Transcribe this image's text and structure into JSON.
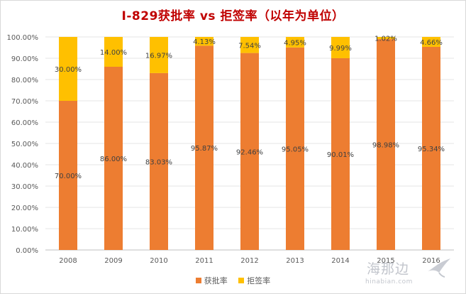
{
  "chart_data": {
    "type": "bar",
    "stacked": true,
    "title": "I-829获批率 vs 拒签率（以年为单位）",
    "xlabel": "",
    "ylabel": "",
    "ylim": [
      0,
      100
    ],
    "y_ticks": [
      "0.00%",
      "10.00%",
      "20.00%",
      "30.00%",
      "40.00%",
      "50.00%",
      "60.00%",
      "70.00%",
      "80.00%",
      "90.00%",
      "100.00%"
    ],
    "categories": [
      "2008",
      "2009",
      "2010",
      "2011",
      "2012",
      "2013",
      "2014",
      "2015",
      "2016"
    ],
    "series": [
      {
        "name": "获批率",
        "color": "#ed7d31",
        "values": [
          70.0,
          86.0,
          83.03,
          95.87,
          92.46,
          95.05,
          90.01,
          98.98,
          95.34
        ],
        "labels": [
          "70.00%",
          "86.00%",
          "83.03%",
          "95.87%",
          "92.46%",
          "95.05%",
          "90.01%",
          "98.98%",
          "95.34%"
        ]
      },
      {
        "name": "拒签率",
        "color": "#ffc000",
        "values": [
          30.0,
          14.0,
          16.97,
          4.13,
          7.54,
          4.95,
          9.99,
          1.02,
          4.66
        ],
        "labels": [
          "30.00%",
          "14.00%",
          "16.97%",
          "4.13%",
          "7.54%",
          "4.95%",
          "9.99%",
          "1.02%",
          "4.66%"
        ]
      }
    ],
    "grid": true,
    "legend_position": "bottom"
  },
  "watermark": {
    "text": "海那边",
    "subtext": "hinabian.com",
    "icon": "bird-logo"
  }
}
